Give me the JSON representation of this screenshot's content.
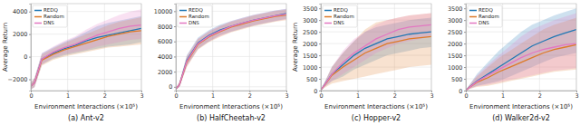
{
  "chart_data": [
    {
      "type": "line",
      "title": "(a) Ant-v2",
      "x_label": "Environment Interactions (×10⁵)",
      "y_label": "Average Return",
      "x": [
        0,
        0.1,
        0.3,
        0.6,
        0.9,
        1.2,
        1.5,
        1.8,
        2.1,
        2.4,
        2.7,
        3.0
      ],
      "xlim": [
        0,
        3.0
      ],
      "xticks": [
        0,
        1,
        2,
        3
      ],
      "ylim": [
        -3000,
        4700
      ],
      "yticks": [
        {
          "value": -2000,
          "label": "−2000"
        },
        0,
        2000,
        4000
      ],
      "grid": true,
      "legend": "upper left",
      "series": [
        {
          "name": "REDQ",
          "color": "#1f77b4",
          "values": [
            -2600,
            -2300,
            -200,
            300,
            700,
            1000,
            1400,
            1700,
            1900,
            2100,
            2300,
            2500
          ],
          "lower": [
            -2900,
            -2700,
            -700,
            -200,
            100,
            300,
            500,
            700,
            900,
            1000,
            1100,
            1300
          ],
          "upper": [
            -2300,
            -1900,
            300,
            800,
            1300,
            1700,
            2200,
            2700,
            3000,
            3200,
            3400,
            3600
          ]
        },
        {
          "name": "Random",
          "color": "#dd7a28",
          "values": [
            -2600,
            -2300,
            -300,
            200,
            600,
            900,
            1200,
            1500,
            1800,
            2000,
            2200,
            2300
          ],
          "lower": [
            -2900,
            -2700,
            -800,
            -300,
            0,
            200,
            400,
            600,
            800,
            900,
            1000,
            1100
          ],
          "upper": [
            -2300,
            -1900,
            200,
            700,
            1200,
            1600,
            2000,
            2400,
            2800,
            3100,
            3300,
            3500
          ]
        },
        {
          "name": "DNS",
          "color": "#e377c2",
          "values": [
            -2600,
            -2300,
            -200,
            400,
            800,
            1100,
            1500,
            1900,
            2200,
            2500,
            2700,
            2800
          ],
          "lower": [
            -2900,
            -2700,
            -700,
            -100,
            200,
            400,
            600,
            900,
            1100,
            1300,
            1500,
            1600
          ],
          "upper": [
            -2300,
            -1900,
            300,
            900,
            1400,
            1800,
            2400,
            2900,
            3300,
            3700,
            4000,
            4200
          ]
        }
      ]
    },
    {
      "type": "line",
      "title": "(b) HalfCheetah-v2",
      "x_label": "Environment Interactions (×10⁵)",
      "x": [
        0,
        0.1,
        0.3,
        0.6,
        0.9,
        1.2,
        1.5,
        1.8,
        2.1,
        2.4,
        2.7,
        3.0
      ],
      "xlim": [
        0,
        3.0
      ],
      "xticks": [
        0,
        1,
        2,
        3
      ],
      "ylim": [
        -500,
        11000
      ],
      "yticks": [
        0,
        2000,
        4000,
        6000,
        8000,
        10000
      ],
      "grid": true,
      "legend": "upper left",
      "series": [
        {
          "name": "REDQ",
          "color": "#1f77b4",
          "values": [
            -300,
            300,
            3500,
            5800,
            6800,
            7500,
            8000,
            8400,
            8800,
            9100,
            9400,
            9700
          ],
          "lower": [
            -400,
            0,
            2800,
            5000,
            6000,
            6800,
            7300,
            7700,
            8100,
            8400,
            8700,
            9000
          ],
          "upper": [
            -200,
            600,
            4200,
            6500,
            7500,
            8200,
            8700,
            9100,
            9500,
            9800,
            10100,
            10300
          ]
        },
        {
          "name": "Random",
          "color": "#dd7a28",
          "values": [
            -300,
            300,
            3300,
            5600,
            6600,
            7300,
            7900,
            8300,
            8700,
            9000,
            9300,
            9500
          ],
          "lower": [
            -400,
            0,
            2600,
            4900,
            5900,
            6600,
            7200,
            7600,
            8000,
            8300,
            8600,
            8800
          ],
          "upper": [
            -200,
            600,
            4000,
            6300,
            7300,
            8000,
            8600,
            9000,
            9400,
            9700,
            10000,
            10200
          ]
        },
        {
          "name": "DNS",
          "color": "#e377c2",
          "values": [
            -300,
            300,
            3400,
            5700,
            6700,
            7400,
            8000,
            8400,
            8800,
            9100,
            9400,
            9600
          ],
          "lower": [
            -400,
            0,
            2700,
            5000,
            6000,
            6700,
            7300,
            7700,
            8100,
            8400,
            8700,
            8900
          ],
          "upper": [
            -200,
            600,
            4100,
            6400,
            7400,
            8100,
            8700,
            9100,
            9500,
            9800,
            10100,
            10300
          ]
        }
      ]
    },
    {
      "type": "line",
      "title": "(c) Hopper-v2",
      "x_label": "Environment Interactions (×10⁵)",
      "y_label": "Average Return",
      "x": [
        0,
        0.1,
        0.3,
        0.6,
        0.9,
        1.2,
        1.5,
        1.8,
        2.1,
        2.4,
        2.7,
        3.0
      ],
      "xlim": [
        0,
        3.0
      ],
      "xticks": [
        0,
        1,
        2,
        3
      ],
      "ylim": [
        0,
        3700
      ],
      "yticks": [
        0,
        500,
        1000,
        1500,
        2000,
        2500,
        3000,
        3500
      ],
      "grid": true,
      "legend": "upper left",
      "series": [
        {
          "name": "REDQ",
          "color": "#1f77b4",
          "values": [
            20,
            250,
            700,
            1100,
            1500,
            1800,
            2000,
            2200,
            2300,
            2400,
            2450,
            2500
          ],
          "lower": [
            10,
            150,
            400,
            600,
            900,
            1100,
            1300,
            1500,
            1600,
            1700,
            1800,
            1850
          ],
          "upper": [
            30,
            350,
            1000,
            1600,
            2100,
            2500,
            2700,
            2800,
            2900,
            3000,
            3050,
            3100
          ]
        },
        {
          "name": "Random",
          "color": "#dd7a28",
          "values": [
            20,
            230,
            650,
            1000,
            1300,
            1600,
            1800,
            2000,
            2100,
            2200,
            2250,
            2300
          ],
          "lower": [
            10,
            120,
            300,
            400,
            500,
            600,
            700,
            800,
            900,
            1000,
            1050,
            1100
          ],
          "upper": [
            30,
            340,
            1000,
            1600,
            2100,
            2600,
            2900,
            3000,
            3100,
            3200,
            3250,
            3300
          ]
        },
        {
          "name": "DNS",
          "color": "#e377c2",
          "values": [
            20,
            240,
            700,
            1200,
            1600,
            1900,
            2200,
            2400,
            2600,
            2700,
            2750,
            2800
          ],
          "lower": [
            10,
            140,
            400,
            700,
            1000,
            1300,
            1600,
            1800,
            2000,
            2100,
            2200,
            2300
          ],
          "upper": [
            30,
            340,
            1000,
            1700,
            2200,
            2500,
            2800,
            3000,
            3100,
            3200,
            3250,
            3300
          ]
        }
      ]
    },
    {
      "type": "line",
      "title": "(d) Walker2d-v2",
      "x_label": "Environment Interactions (×10⁵)",
      "x": [
        0,
        0.1,
        0.3,
        0.6,
        0.9,
        1.2,
        1.5,
        1.8,
        2.1,
        2.4,
        2.7,
        3.0
      ],
      "xlim": [
        0,
        3.0
      ],
      "xticks": [
        0,
        1,
        2,
        3
      ],
      "ylim": [
        0,
        3700
      ],
      "yticks": [
        0,
        500,
        1000,
        1500,
        2000,
        2500,
        3000,
        3500
      ],
      "grid": true,
      "legend": "upper left",
      "series": [
        {
          "name": "REDQ",
          "color": "#1f77b4",
          "values": [
            0,
            150,
            400,
            700,
            1000,
            1300,
            1600,
            1900,
            2100,
            2300,
            2450,
            2600
          ],
          "lower": [
            0,
            80,
            200,
            300,
            400,
            600,
            800,
            1000,
            1200,
            1400,
            1500,
            1600
          ],
          "upper": [
            10,
            250,
            700,
            1200,
            1700,
            2100,
            2500,
            2800,
            3000,
            3200,
            3350,
            3500
          ]
        },
        {
          "name": "Random",
          "color": "#dd7a28",
          "values": [
            0,
            140,
            350,
            550,
            800,
            1000,
            1200,
            1400,
            1600,
            1750,
            1850,
            1950
          ],
          "lower": [
            0,
            70,
            150,
            200,
            300,
            400,
            500,
            600,
            700,
            800,
            850,
            900
          ],
          "upper": [
            10,
            230,
            600,
            1000,
            1400,
            1700,
            2000,
            2300,
            2600,
            2800,
            2950,
            3100
          ]
        },
        {
          "name": "DNS",
          "color": "#e377c2",
          "values": [
            0,
            140,
            380,
            650,
            900,
            1150,
            1400,
            1600,
            1750,
            1850,
            1950,
            2000
          ],
          "lower": [
            0,
            70,
            180,
            250,
            350,
            450,
            550,
            650,
            750,
            850,
            900,
            950
          ],
          "upper": [
            10,
            240,
            650,
            1100,
            1500,
            1900,
            2300,
            2600,
            2800,
            3000,
            3150,
            3300
          ]
        }
      ]
    }
  ]
}
